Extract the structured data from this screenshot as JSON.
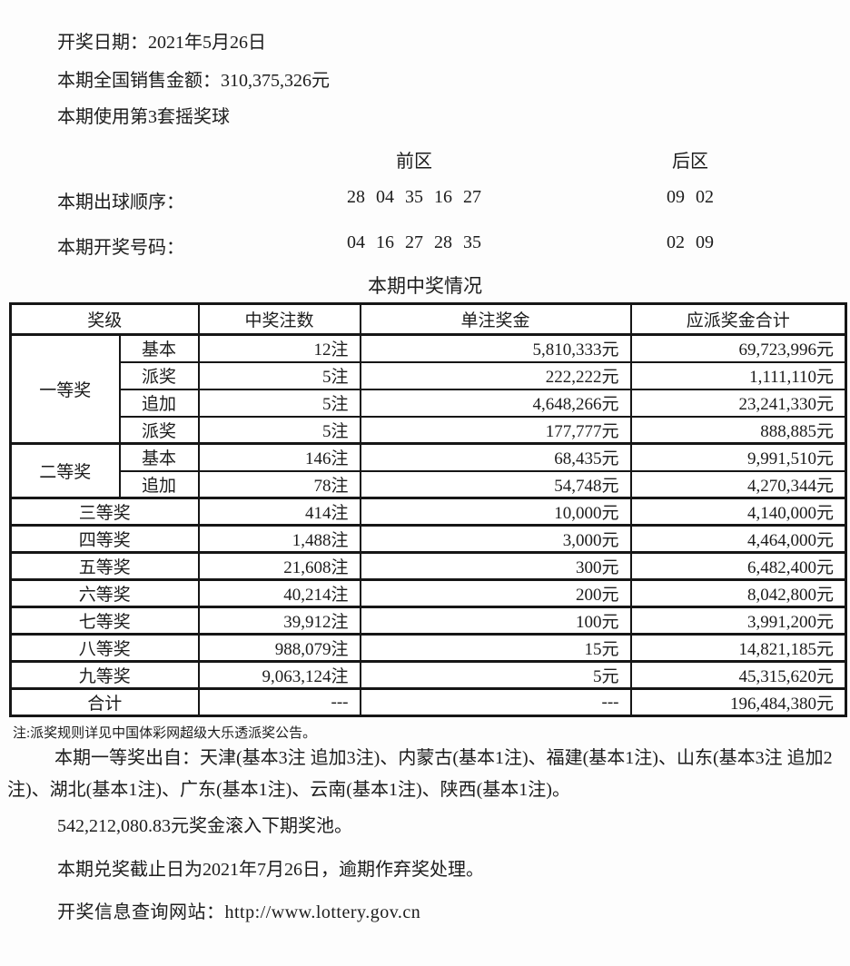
{
  "info": {
    "draw_date": "开奖日期：2021年5月26日",
    "sales_amount": "本期全国销售金额：310,375,326元",
    "ball_set": "本期使用第3套摇奖球"
  },
  "draw": {
    "front_zone_label": "前区",
    "back_zone_label": "后区",
    "order_row": {
      "label": "本期出球顺序：",
      "front": "28 04 35 16 27",
      "back": "09 02"
    },
    "winning_row": {
      "label": "本期开奖号码：",
      "front": "04 16 27 28 35",
      "back": "02 09"
    }
  },
  "table": {
    "title": "本期中奖情况",
    "headers": {
      "level": "奖级",
      "count": "中奖注数",
      "single": "单注奖金",
      "total": "应派奖金合计"
    },
    "rows": [
      {
        "level": "一等奖",
        "sub": "基本",
        "count": "12注",
        "single": "5,810,333元",
        "total": "69,723,996元"
      },
      {
        "sub": "派奖",
        "count": "5注",
        "single": "222,222元",
        "total": "1,111,110元"
      },
      {
        "sub": "追加",
        "count": "5注",
        "single": "4,648,266元",
        "total": "23,241,330元"
      },
      {
        "sub": "派奖",
        "count": "5注",
        "single": "177,777元",
        "total": "888,885元"
      },
      {
        "level": "二等奖",
        "sub": "基本",
        "count": "146注",
        "single": "68,435元",
        "total": "9,991,510元"
      },
      {
        "sub": "追加",
        "count": "78注",
        "single": "54,748元",
        "total": "4,270,344元"
      },
      {
        "level": "三等奖",
        "count": "414注",
        "single": "10,000元",
        "total": "4,140,000元"
      },
      {
        "level": "四等奖",
        "count": "1,488注",
        "single": "3,000元",
        "total": "4,464,000元"
      },
      {
        "level": "五等奖",
        "count": "21,608注",
        "single": "300元",
        "total": "6,482,400元"
      },
      {
        "level": "六等奖",
        "count": "40,214注",
        "single": "200元",
        "total": "8,042,800元"
      },
      {
        "level": "七等奖",
        "count": "39,912注",
        "single": "100元",
        "total": "3,991,200元"
      },
      {
        "level": "八等奖",
        "count": "988,079注",
        "single": "15元",
        "total": "14,821,185元"
      },
      {
        "level": "九等奖",
        "count": "9,063,124注",
        "single": "5元",
        "total": "45,315,620元"
      },
      {
        "level": "合计",
        "count": "---",
        "single": "---",
        "total": "196,484,380元"
      }
    ]
  },
  "footer": {
    "rule_note": "注:派奖规则详见中国体彩网超级大乐透派奖公告。",
    "winners_paragraph": "本期一等奖出自：天津(基本3注 追加3注)、内蒙古(基本1注)、福建(基本1注)、山东(基本3注 追加2注)、湖北(基本1注)、广东(基本1注)、云南(基本1注)、陕西(基本1注)。",
    "rollover": "542,212,080.83元奖金滚入下期奖池。",
    "deadline": "本期兑奖截止日为2021年7月26日，逾期作弃奖处理。",
    "website": "开奖信息查询网站：http://www.lottery.gov.cn"
  }
}
